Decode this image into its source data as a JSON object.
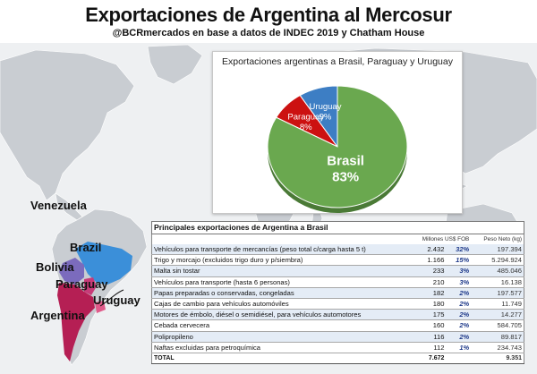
{
  "header": {
    "title": "Exportaciones de Argentina al Mercosur",
    "subtitle": "@BCRmercados en base a datos de INDEC 2019 y Chatham House"
  },
  "map": {
    "labels": {
      "venezuela": "Venezuela",
      "brazil": "Brazil",
      "bolivia": "Bolivia",
      "paraguay": "Paraguay",
      "uruguay": "Uruguay",
      "argentina": "Argentina"
    },
    "colors": {
      "land": "#c9cdd2",
      "ocean": "#eef0f2",
      "brazil": "#3b8fd9",
      "bolivia": "#7b6bbd",
      "paraguay": "#c83a78",
      "argentina": "#b51f54",
      "uruguay": "#e05a8a"
    }
  },
  "chart_data": {
    "type": "pie",
    "title": "Exportaciones argentinas a Brasil, Paraguay y Uruguay",
    "slices": [
      {
        "label": "Brasil",
        "value": 83,
        "display": "83%",
        "color": "#6aa84f"
      },
      {
        "label": "Paraguay",
        "value": 8,
        "display": "8%",
        "color": "#cc1111"
      },
      {
        "label": "Uruguay",
        "value": 9,
        "display": "9%",
        "color": "#3d7ec4"
      }
    ]
  },
  "table": {
    "title": "Principales exportaciones de Argentina a Brasil",
    "col_value": "Millones US$ FOB",
    "col_weight": "Peso Neto (kg)",
    "rows": [
      {
        "product": "Vehículos para transporte de mercancías (peso total c/carga hasta 5 t)",
        "value": "2.432",
        "pct": "32%",
        "weight": "197.394"
      },
      {
        "product": "Trigo y morcajo (excluidos trigo duro y p/siembra)",
        "value": "1.166",
        "pct": "15%",
        "weight": "5.294.924"
      },
      {
        "product": "Malta sin tostar",
        "value": "233",
        "pct": "3%",
        "weight": "485.046"
      },
      {
        "product": "Vehículos para transporte (hasta 6 personas)",
        "value": "210",
        "pct": "3%",
        "weight": "16.138"
      },
      {
        "product": "Papas preparadas o conservadas, congeladas",
        "value": "182",
        "pct": "2%",
        "weight": "197.577"
      },
      {
        "product": "Cajas de cambio para vehículos automóviles",
        "value": "180",
        "pct": "2%",
        "weight": "11.749"
      },
      {
        "product": "Motores de émbolo, diésel o semidiésel, para vehículos automotores",
        "value": "175",
        "pct": "2%",
        "weight": "14.277"
      },
      {
        "product": "Cebada cervecera",
        "value": "160",
        "pct": "2%",
        "weight": "584.705"
      },
      {
        "product": "Polipropileno",
        "value": "116",
        "pct": "2%",
        "weight": "89.817"
      },
      {
        "product": "Naftas excluidas para petroquímica",
        "value": "112",
        "pct": "1%",
        "weight": "234.743"
      }
    ],
    "total": {
      "label": "TOTAL",
      "value": "7.672",
      "weight": "9.351"
    }
  }
}
